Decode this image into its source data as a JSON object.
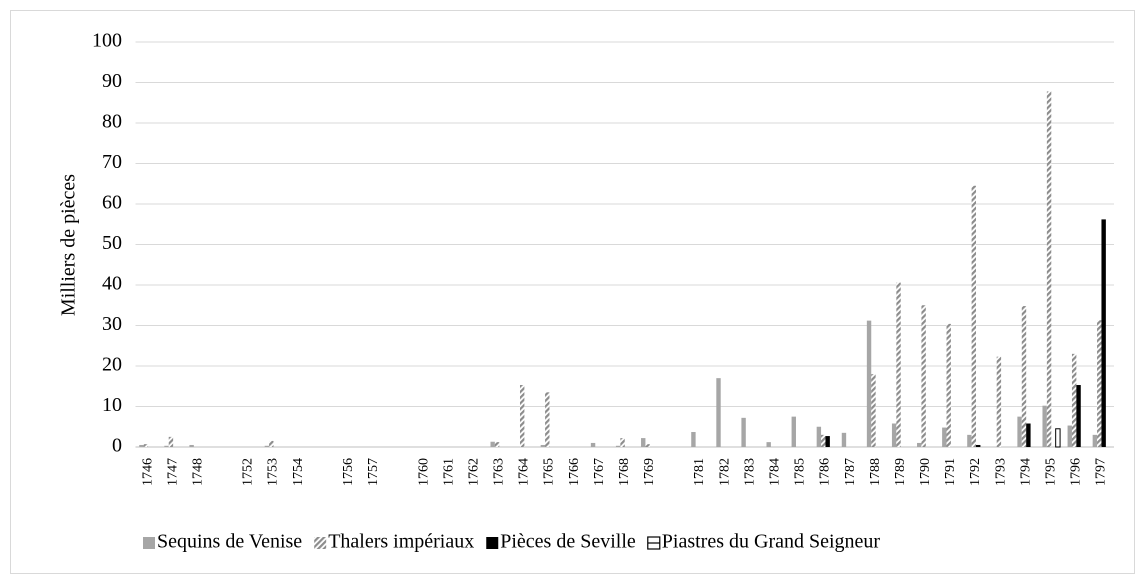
{
  "chart_data": {
    "type": "bar",
    "y_label": "Milliers de pièces",
    "categories": [
      "1746",
      "1747",
      "1748",
      null,
      "1752",
      "1753",
      "1754",
      null,
      "1756",
      "1757",
      null,
      "1760",
      "1761",
      "1762",
      "1763",
      "1764",
      "1765",
      "1766",
      "1767",
      "1768",
      "1769",
      null,
      "1781",
      "1782",
      "1783",
      "1784",
      "1785",
      "1786",
      "1787",
      "1788",
      "1789",
      "1790",
      "1791",
      "1792",
      "1793",
      "1794",
      "1795",
      "1796",
      "1797"
    ],
    "series": [
      {
        "name": "Sequins de Venise",
        "color": "#a6a6a6",
        "pattern": "solid",
        "values": [
          0.5,
          0.3,
          0.5,
          null,
          0,
          0.3,
          0,
          null,
          0,
          0,
          null,
          0,
          0,
          0,
          1.3,
          0,
          0.5,
          0,
          1,
          0.3,
          2.2,
          null,
          3.7,
          17,
          7.2,
          1.2,
          7.5,
          5,
          3.5,
          31.2,
          5.8,
          1,
          4.8,
          3,
          0,
          7.5,
          10.2,
          5.3,
          3
        ]
      },
      {
        "name": "Thalers impériaux",
        "color": "#8c8c8c",
        "pattern": "diagonal",
        "values": [
          0.7,
          2.5,
          0,
          null,
          0,
          1.5,
          0,
          null,
          0,
          0,
          null,
          0,
          0,
          0,
          1.2,
          15.3,
          13.5,
          0,
          0,
          2.2,
          0.7,
          null,
          0,
          0,
          0,
          0,
          0,
          3,
          0,
          18,
          40.6,
          35,
          30.4,
          64.5,
          22.3,
          34.8,
          87.8,
          23,
          31.3
        ]
      },
      {
        "name": "Pièces de Seville",
        "color": "#000000",
        "pattern": "solid",
        "values": [
          0,
          0,
          0,
          null,
          0,
          0,
          0,
          null,
          0,
          0,
          null,
          0,
          0,
          0,
          0,
          0,
          0,
          0,
          0,
          0,
          0,
          null,
          0,
          0,
          0,
          0,
          0,
          2.7,
          0,
          0,
          0,
          0,
          0,
          0.5,
          0,
          5.8,
          0,
          15.3,
          56.2
        ]
      },
      {
        "name": "Piastres du Grand Seigneur",
        "color": "#000000",
        "pattern": "outline",
        "values": [
          0,
          0,
          0,
          null,
          0,
          0,
          0,
          null,
          0,
          0,
          null,
          0,
          0,
          0,
          0,
          0,
          0,
          0,
          0,
          0,
          0,
          null,
          0,
          0,
          0,
          0,
          0,
          0,
          0,
          0,
          0,
          0,
          0,
          0,
          0,
          0,
          4.5,
          0,
          0
        ]
      }
    ],
    "ylim": [
      0,
      100
    ],
    "yticks": [
      0,
      10,
      20,
      30,
      40,
      50,
      60,
      70,
      80,
      90,
      100
    ],
    "grid": true,
    "legend": "bottom"
  }
}
